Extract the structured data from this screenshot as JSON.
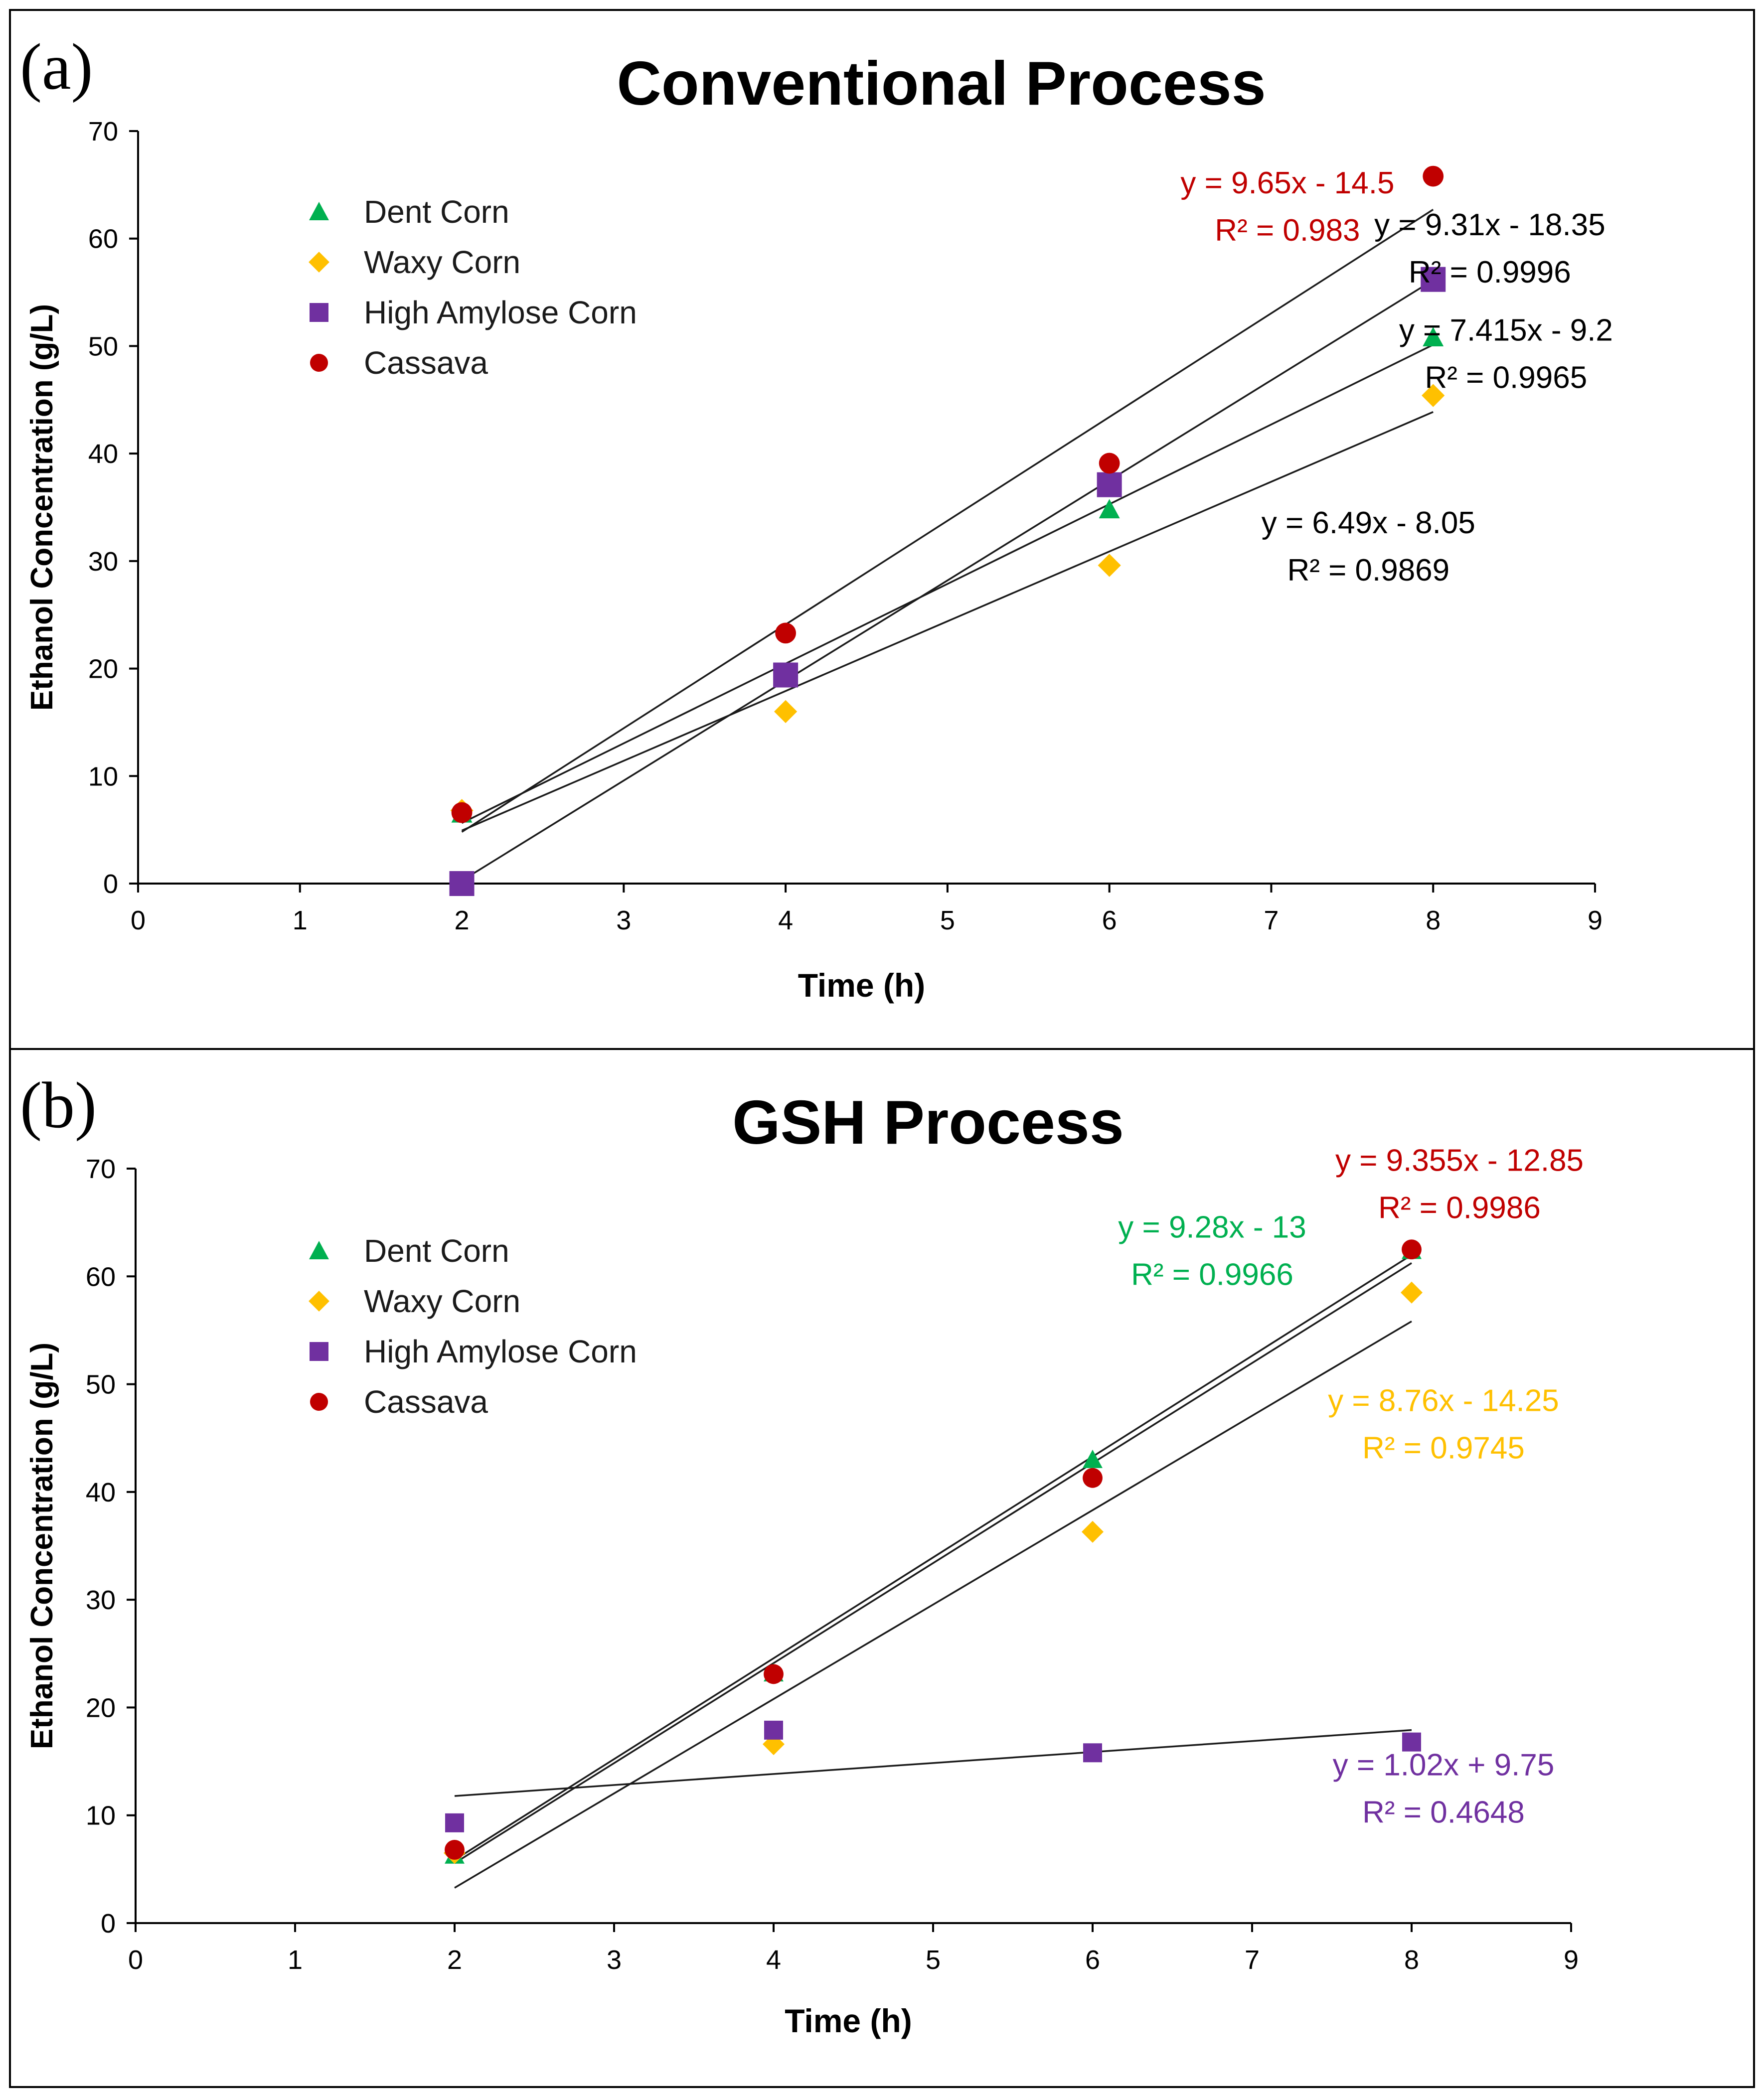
{
  "chart_data": [
    {
      "type": "scatter",
      "panel_label": "(a)",
      "title": "Conventional Process",
      "xlabel": "Time (h)",
      "ylabel": "Ethanol Concentration (g/L)",
      "xlim": [
        0,
        9
      ],
      "ylim": [
        0,
        70
      ],
      "xticks": [
        "0",
        "1",
        "2",
        "3",
        "4",
        "5",
        "6",
        "7",
        "8",
        "9"
      ],
      "yticks": [
        "0",
        "10",
        "20",
        "30",
        "40",
        "50",
        "60",
        "70"
      ],
      "grid": false,
      "legend_position": "top-left",
      "series": [
        {
          "name": "Dent Corn",
          "marker": "triangle",
          "color": "#00b050",
          "x": [
            2,
            4,
            6,
            8
          ],
          "y": [
            6.5,
            19.5,
            34.8,
            50.8
          ]
        },
        {
          "name": "Waxy Corn",
          "marker": "diamond",
          "color": "#ffc000",
          "x": [
            2,
            4,
            6,
            8
          ],
          "y": [
            6.8,
            16.0,
            29.6,
            45.4
          ]
        },
        {
          "name": "High Amylose Corn",
          "marker": "square",
          "color": "#7030a0",
          "x": [
            2,
            4,
            6,
            8
          ],
          "y": [
            0.0,
            19.4,
            37.1,
            56.2
          ]
        },
        {
          "name": "Cassava",
          "marker": "circle",
          "color": "#c00000",
          "x": [
            2,
            4,
            6,
            8
          ],
          "y": [
            6.6,
            23.3,
            39.1,
            65.8
          ]
        }
      ],
      "trendlines": [
        {
          "series": "Dent Corn",
          "slope": 7.415,
          "intercept": -9.2,
          "x_range": [
            2.0,
            8.0
          ]
        },
        {
          "series": "Waxy Corn",
          "slope": 6.49,
          "intercept": -8.05,
          "x_range": [
            2.0,
            8.0
          ]
        },
        {
          "series": "High Amylose Corn",
          "slope": 9.31,
          "intercept": -18.35,
          "x_range": [
            2.0,
            8.0
          ]
        },
        {
          "series": "Cassava",
          "slope": 9.65,
          "intercept": -14.5,
          "x_range": [
            2.0,
            8.0
          ]
        }
      ],
      "annotations": [
        {
          "eq": "y = 9.65x - 14.5",
          "r2": "R² = 0.983",
          "color": "#c00000",
          "x": 7.1,
          "y": 64.2
        },
        {
          "eq": "y = 9.31x - 18.35",
          "r2": "R² = 0.9996",
          "color": "#000000",
          "x": 8.35,
          "y": 60.3
        },
        {
          "eq": "y = 7.415x - 9.2",
          "r2": "R² = 0.9965",
          "color": "#000000",
          "x": 8.45,
          "y": 50.5
        },
        {
          "eq": "y = 6.49x - 8.05",
          "r2": "R² = 0.9869",
          "color": "#000000",
          "x": 7.6,
          "y": 32.6
        }
      ]
    },
    {
      "type": "scatter",
      "panel_label": "(b)",
      "title": "GSH Process",
      "xlabel": "Time (h)",
      "ylabel": "Ethanol Concentration (g/L)",
      "xlim": [
        0,
        9
      ],
      "ylim": [
        0,
        70
      ],
      "xticks": [
        "0",
        "1",
        "2",
        "3",
        "4",
        "5",
        "6",
        "7",
        "8",
        "9"
      ],
      "yticks": [
        "0",
        "10",
        "20",
        "30",
        "40",
        "50",
        "60",
        "70"
      ],
      "grid": false,
      "legend_position": "top-left",
      "series": [
        {
          "name": "Dent Corn",
          "marker": "triangle",
          "color": "#00b050",
          "x": [
            2,
            4,
            6,
            8
          ],
          "y": [
            6.3,
            23.2,
            43.0,
            62.4
          ]
        },
        {
          "name": "Waxy Corn",
          "marker": "diamond",
          "color": "#ffc000",
          "x": [
            2,
            4,
            6,
            8
          ],
          "y": [
            6.5,
            16.6,
            36.3,
            58.5
          ]
        },
        {
          "name": "High Amylose Corn",
          "marker": "square",
          "color": "#7030a0",
          "x": [
            2,
            4,
            6,
            8
          ],
          "y": [
            9.3,
            17.9,
            15.8,
            16.8
          ]
        },
        {
          "name": "Cassava",
          "marker": "circle",
          "color": "#c00000",
          "x": [
            2,
            4,
            6,
            8
          ],
          "y": [
            6.8,
            23.1,
            41.3,
            62.5
          ]
        }
      ],
      "trendlines": [
        {
          "series": "Dent Corn",
          "slope": 9.28,
          "intercept": -13,
          "x_range": [
            2.0,
            8.0
          ]
        },
        {
          "series": "Waxy Corn",
          "slope": 8.76,
          "intercept": -14.25,
          "x_range": [
            2.0,
            8.0
          ]
        },
        {
          "series": "High Amylose Corn",
          "slope": 1.02,
          "intercept": 9.75,
          "x_range": [
            2.0,
            8.0
          ]
        },
        {
          "series": "Cassava",
          "slope": 9.355,
          "intercept": -12.85,
          "x_range": [
            2.0,
            8.0
          ]
        }
      ],
      "annotations": [
        {
          "eq": "y = 9.355x - 12.85",
          "r2": "R² = 0.9986",
          "color": "#c00000",
          "x": 8.3,
          "y": 69.8
        },
        {
          "eq": "y = 9.28x - 13",
          "r2": "R² = 0.9966",
          "color": "#00b050",
          "x": 6.75,
          "y": 63.6
        },
        {
          "eq": "y = 8.76x - 14.25",
          "r2": "R² = 0.9745",
          "color": "#ffc000",
          "x": 8.2,
          "y": 47.5
        },
        {
          "eq": "y = 1.02x + 9.75",
          "r2": "R² = 0.4648",
          "color": "#7030a0",
          "x": 8.2,
          "y": 13.7
        }
      ]
    }
  ]
}
